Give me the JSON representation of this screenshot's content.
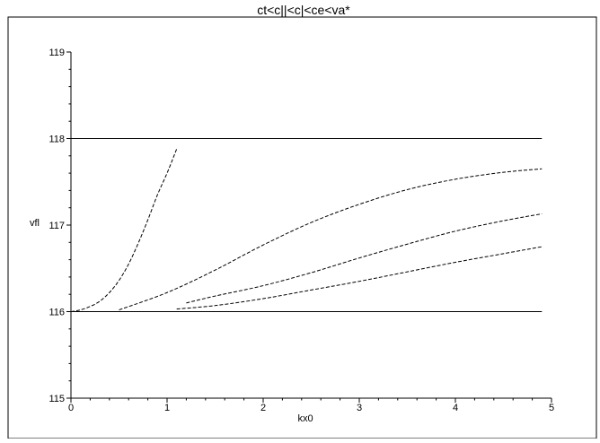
{
  "chart_data": {
    "type": "line",
    "title": "ct<c||<c|<ce<va*",
    "xlabel": "kx0",
    "ylabel": "vfl",
    "xlim": [
      0,
      5
    ],
    "ylim": [
      115,
      119
    ],
    "x_ticks": [
      0,
      1,
      2,
      3,
      4,
      5
    ],
    "y_ticks": [
      115,
      116,
      117,
      118,
      119
    ],
    "x_tick_labels": [
      "0",
      "1",
      "2",
      "3",
      "4",
      "5"
    ],
    "y_tick_labels": [
      "115",
      "116",
      "117",
      "118",
      "119"
    ],
    "minor_ticks_per_major": 5,
    "grid": false,
    "legend": "none",
    "series": [
      {
        "style": "solid",
        "x": [
          0,
          4.9
        ],
        "y": [
          118,
          118
        ]
      },
      {
        "style": "solid",
        "x": [
          0,
          4.9
        ],
        "y": [
          116,
          116
        ]
      },
      {
        "style": "dashed",
        "x": [
          0,
          0.1,
          0.2,
          0.3,
          0.4,
          0.5,
          0.6,
          0.7,
          0.8,
          0.9,
          1.0,
          1.1
        ],
        "y": [
          116.0,
          116.02,
          116.06,
          116.12,
          116.22,
          116.36,
          116.55,
          116.79,
          117.06,
          117.35,
          117.6,
          117.88
        ]
      },
      {
        "style": "dashed",
        "x": [
          0.5,
          1.0,
          1.5,
          2.0,
          2.5,
          3.0,
          3.5,
          4.0,
          4.5,
          4.9
        ],
        "y": [
          116.02,
          116.22,
          116.48,
          116.77,
          117.03,
          117.24,
          117.41,
          117.53,
          117.61,
          117.65
        ]
      },
      {
        "style": "dashed",
        "x": [
          1.2,
          1.5,
          2.0,
          2.5,
          3.0,
          3.5,
          4.0,
          4.5,
          4.9
        ],
        "y": [
          116.1,
          116.18,
          116.3,
          116.45,
          116.62,
          116.78,
          116.93,
          117.05,
          117.13
        ]
      },
      {
        "style": "dashed",
        "x": [
          1.1,
          1.5,
          2.0,
          2.5,
          3.0,
          3.5,
          4.0,
          4.5,
          4.9
        ],
        "y": [
          116.03,
          116.07,
          116.15,
          116.25,
          116.35,
          116.46,
          116.57,
          116.67,
          116.75
        ]
      }
    ]
  }
}
